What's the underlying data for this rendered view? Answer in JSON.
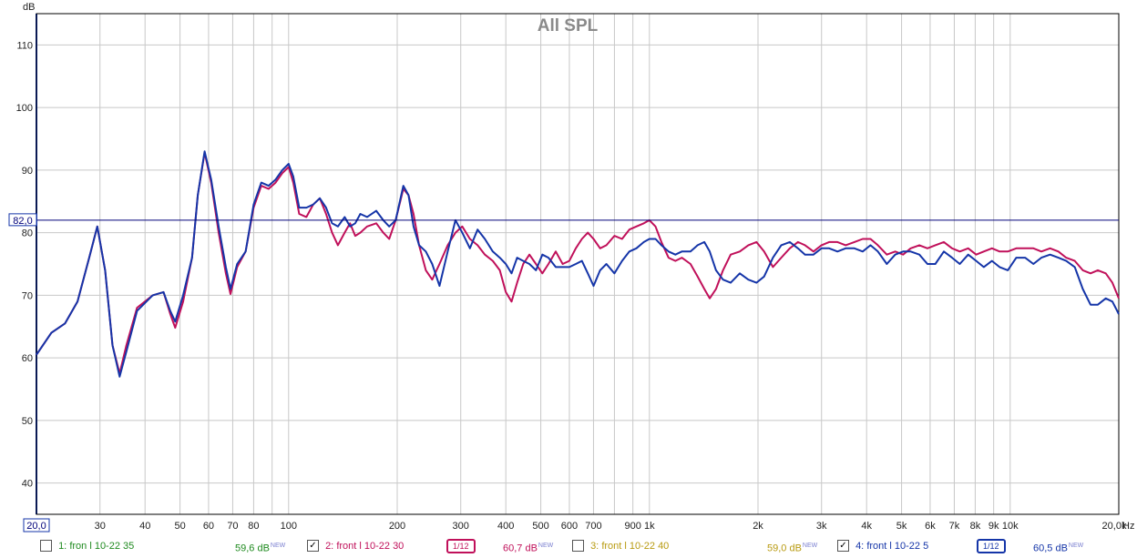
{
  "chart_data": {
    "type": "line",
    "title": "All SPL",
    "ylabel": "dB",
    "xunit": "Hz",
    "xscale": "log",
    "xlim": [
      20,
      20000
    ],
    "ylim": [
      35,
      115
    ],
    "grid": true,
    "ref_line": {
      "value": 82.0,
      "label": "82,0"
    },
    "x_start_label": "20,0",
    "y_ticks": [
      "40",
      "50",
      "60",
      "70",
      "80",
      "90",
      "100",
      "110"
    ],
    "x_ticks": [
      {
        "v": 30,
        "t": "30"
      },
      {
        "v": 40,
        "t": "40"
      },
      {
        "v": 50,
        "t": "50"
      },
      {
        "v": 60,
        "t": "60"
      },
      {
        "v": 70,
        "t": "70"
      },
      {
        "v": 80,
        "t": "80"
      },
      {
        "v": 100,
        "t": "100"
      },
      {
        "v": 200,
        "t": "200"
      },
      {
        "v": 300,
        "t": "300"
      },
      {
        "v": 400,
        "t": "400"
      },
      {
        "v": 500,
        "t": "500"
      },
      {
        "v": 600,
        "t": "600"
      },
      {
        "v": 700,
        "t": "700"
      },
      {
        "v": 900,
        "t": "900"
      },
      {
        "v": 1000,
        "t": "1k"
      },
      {
        "v": 2000,
        "t": "2k"
      },
      {
        "v": 3000,
        "t": "3k"
      },
      {
        "v": 4000,
        "t": "4k"
      },
      {
        "v": 5000,
        "t": "5k"
      },
      {
        "v": 6000,
        "t": "6k"
      },
      {
        "v": 7000,
        "t": "7k"
      },
      {
        "v": 8000,
        "t": "8k"
      },
      {
        "v": 9000,
        "t": "9k"
      },
      {
        "v": 10000,
        "t": "10k"
      },
      {
        "v": 20000,
        "t": "20,0k"
      }
    ],
    "series": [
      {
        "name": "2: front l 10-22 30",
        "color": "#c0105a",
        "points": [
          [
            20,
            60.5
          ],
          [
            22,
            64
          ],
          [
            24,
            65.5
          ],
          [
            26,
            69
          ],
          [
            28,
            76
          ],
          [
            29.5,
            81
          ],
          [
            31,
            74
          ],
          [
            32.5,
            62
          ],
          [
            34,
            57.5
          ],
          [
            35.5,
            62
          ],
          [
            38,
            68
          ],
          [
            42,
            70
          ],
          [
            45,
            70.5
          ],
          [
            47,
            67
          ],
          [
            48.5,
            64.8
          ],
          [
            51,
            69
          ],
          [
            54,
            76
          ],
          [
            56,
            86
          ],
          [
            58.5,
            92.8
          ],
          [
            61,
            88
          ],
          [
            64,
            80
          ],
          [
            67,
            73.5
          ],
          [
            69,
            70.2
          ],
          [
            72,
            74.5
          ],
          [
            76,
            77
          ],
          [
            80,
            84
          ],
          [
            84,
            87.5
          ],
          [
            88,
            87
          ],
          [
            92,
            88
          ],
          [
            96,
            89.5
          ],
          [
            100,
            90.5
          ],
          [
            103,
            88
          ],
          [
            107,
            83
          ],
          [
            112,
            82.5
          ],
          [
            117,
            84.5
          ],
          [
            122,
            85.5
          ],
          [
            127,
            83
          ],
          [
            132,
            80
          ],
          [
            137,
            78
          ],
          [
            143,
            80
          ],
          [
            148,
            81.5
          ],
          [
            153,
            79.5
          ],
          [
            158,
            80
          ],
          [
            165,
            81
          ],
          [
            175,
            81.5
          ],
          [
            183,
            80
          ],
          [
            190,
            79
          ],
          [
            198,
            82
          ],
          [
            208,
            87
          ],
          [
            215,
            86
          ],
          [
            222,
            83
          ],
          [
            230,
            78
          ],
          [
            240,
            74
          ],
          [
            250,
            72.5
          ],
          [
            262,
            75
          ],
          [
            276,
            78
          ],
          [
            290,
            80
          ],
          [
            303,
            81
          ],
          [
            318,
            79
          ],
          [
            334,
            78
          ],
          [
            350,
            76.5
          ],
          [
            368,
            75.5
          ],
          [
            385,
            74
          ],
          [
            400,
            70.5
          ],
          [
            415,
            69
          ],
          [
            430,
            72
          ],
          [
            447,
            75
          ],
          [
            465,
            76.5
          ],
          [
            485,
            75
          ],
          [
            505,
            73.5
          ],
          [
            525,
            75
          ],
          [
            550,
            77
          ],
          [
            575,
            75
          ],
          [
            600,
            75.5
          ],
          [
            625,
            77.5
          ],
          [
            650,
            79
          ],
          [
            675,
            80
          ],
          [
            700,
            79
          ],
          [
            730,
            77.5
          ],
          [
            760,
            78
          ],
          [
            800,
            79.5
          ],
          [
            840,
            79
          ],
          [
            880,
            80.5
          ],
          [
            920,
            81
          ],
          [
            965,
            81.5
          ],
          [
            1000,
            82
          ],
          [
            1040,
            81
          ],
          [
            1080,
            78.5
          ],
          [
            1130,
            76
          ],
          [
            1180,
            75.5
          ],
          [
            1230,
            76
          ],
          [
            1300,
            75
          ],
          [
            1360,
            73
          ],
          [
            1420,
            71
          ],
          [
            1470,
            69.5
          ],
          [
            1530,
            71
          ],
          [
            1600,
            74
          ],
          [
            1680,
            76.5
          ],
          [
            1780,
            77
          ],
          [
            1880,
            78
          ],
          [
            1980,
            78.5
          ],
          [
            2080,
            77
          ],
          [
            2200,
            74.5
          ],
          [
            2320,
            76
          ],
          [
            2450,
            77.5
          ],
          [
            2580,
            78.5
          ],
          [
            2700,
            78
          ],
          [
            2850,
            77
          ],
          [
            3000,
            78
          ],
          [
            3150,
            78.5
          ],
          [
            3320,
            78.5
          ],
          [
            3500,
            78
          ],
          [
            3700,
            78.5
          ],
          [
            3900,
            79
          ],
          [
            4100,
            79
          ],
          [
            4300,
            78
          ],
          [
            4550,
            76.5
          ],
          [
            4800,
            77
          ],
          [
            5050,
            76.5
          ],
          [
            5300,
            77.5
          ],
          [
            5600,
            78
          ],
          [
            5900,
            77.5
          ],
          [
            6200,
            78
          ],
          [
            6550,
            78.5
          ],
          [
            6900,
            77.5
          ],
          [
            7250,
            77
          ],
          [
            7650,
            77.5
          ],
          [
            8050,
            76.5
          ],
          [
            8450,
            77
          ],
          [
            8900,
            77.5
          ],
          [
            9350,
            77
          ],
          [
            9850,
            77
          ],
          [
            10400,
            77.5
          ],
          [
            11000,
            77.5
          ],
          [
            11600,
            77.5
          ],
          [
            12200,
            77
          ],
          [
            12900,
            77.5
          ],
          [
            13600,
            77
          ],
          [
            14300,
            76
          ],
          [
            15100,
            75.5
          ],
          [
            15900,
            74
          ],
          [
            16700,
            73.5
          ],
          [
            17500,
            74
          ],
          [
            18400,
            73.5
          ],
          [
            19200,
            72
          ],
          [
            20000,
            69.5
          ]
        ]
      },
      {
        "name": "4: front l 10-22 5",
        "color": "#1535a8",
        "points": [
          [
            20,
            60.5
          ],
          [
            22,
            64
          ],
          [
            24,
            65.5
          ],
          [
            26,
            69
          ],
          [
            28,
            76
          ],
          [
            29.5,
            81
          ],
          [
            31,
            74
          ],
          [
            32.5,
            62
          ],
          [
            34,
            57
          ],
          [
            35.5,
            61
          ],
          [
            38,
            67.5
          ],
          [
            42,
            70
          ],
          [
            45,
            70.5
          ],
          [
            47,
            67.5
          ],
          [
            48.5,
            65.8
          ],
          [
            51,
            70
          ],
          [
            54,
            76
          ],
          [
            56,
            86
          ],
          [
            58.5,
            93
          ],
          [
            61,
            88.5
          ],
          [
            64,
            81
          ],
          [
            67,
            74.5
          ],
          [
            69,
            71
          ],
          [
            72,
            75
          ],
          [
            76,
            77
          ],
          [
            80,
            84.5
          ],
          [
            84,
            88
          ],
          [
            88,
            87.5
          ],
          [
            92,
            88.5
          ],
          [
            96,
            90
          ],
          [
            100,
            91
          ],
          [
            103,
            89
          ],
          [
            107,
            84
          ],
          [
            112,
            84
          ],
          [
            117,
            84.5
          ],
          [
            122,
            85.5
          ],
          [
            127,
            84
          ],
          [
            132,
            81.5
          ],
          [
            137,
            81
          ],
          [
            143,
            82.5
          ],
          [
            148,
            81
          ],
          [
            153,
            81.5
          ],
          [
            158,
            83
          ],
          [
            165,
            82.5
          ],
          [
            175,
            83.5
          ],
          [
            183,
            82
          ],
          [
            190,
            81
          ],
          [
            198,
            82
          ],
          [
            208,
            87.5
          ],
          [
            215,
            86
          ],
          [
            222,
            81
          ],
          [
            230,
            78
          ],
          [
            240,
            77
          ],
          [
            250,
            75
          ],
          [
            262,
            71.5
          ],
          [
            276,
            77
          ],
          [
            290,
            82
          ],
          [
            303,
            80
          ],
          [
            318,
            77.5
          ],
          [
            334,
            80.5
          ],
          [
            350,
            79
          ],
          [
            368,
            77
          ],
          [
            385,
            76
          ],
          [
            400,
            75
          ],
          [
            415,
            73.5
          ],
          [
            430,
            76
          ],
          [
            447,
            75.5
          ],
          [
            465,
            75
          ],
          [
            485,
            74
          ],
          [
            505,
            76.5
          ],
          [
            525,
            76
          ],
          [
            550,
            74.5
          ],
          [
            575,
            74.5
          ],
          [
            600,
            74.5
          ],
          [
            625,
            75
          ],
          [
            650,
            75.5
          ],
          [
            675,
            73.5
          ],
          [
            700,
            71.5
          ],
          [
            730,
            74
          ],
          [
            760,
            75
          ],
          [
            800,
            73.5
          ],
          [
            840,
            75.5
          ],
          [
            880,
            77
          ],
          [
            920,
            77.5
          ],
          [
            965,
            78.5
          ],
          [
            1000,
            79
          ],
          [
            1040,
            79
          ],
          [
            1080,
            78
          ],
          [
            1130,
            77
          ],
          [
            1180,
            76.5
          ],
          [
            1230,
            77
          ],
          [
            1300,
            77
          ],
          [
            1360,
            78
          ],
          [
            1420,
            78.5
          ],
          [
            1470,
            77
          ],
          [
            1530,
            74
          ],
          [
            1600,
            72.5
          ],
          [
            1680,
            72
          ],
          [
            1780,
            73.5
          ],
          [
            1880,
            72.5
          ],
          [
            1980,
            72
          ],
          [
            2080,
            73
          ],
          [
            2200,
            76
          ],
          [
            2320,
            78
          ],
          [
            2450,
            78.5
          ],
          [
            2580,
            77.5
          ],
          [
            2700,
            76.5
          ],
          [
            2850,
            76.5
          ],
          [
            3000,
            77.5
          ],
          [
            3150,
            77.5
          ],
          [
            3320,
            77
          ],
          [
            3500,
            77.5
          ],
          [
            3700,
            77.5
          ],
          [
            3900,
            77
          ],
          [
            4100,
            78
          ],
          [
            4300,
            77
          ],
          [
            4550,
            75
          ],
          [
            4800,
            76.5
          ],
          [
            5050,
            77
          ],
          [
            5300,
            77
          ],
          [
            5600,
            76.5
          ],
          [
            5900,
            75
          ],
          [
            6200,
            75
          ],
          [
            6550,
            77
          ],
          [
            6900,
            76
          ],
          [
            7250,
            75
          ],
          [
            7650,
            76.5
          ],
          [
            8050,
            75.5
          ],
          [
            8450,
            74.5
          ],
          [
            8900,
            75.5
          ],
          [
            9350,
            74.5
          ],
          [
            9850,
            74
          ],
          [
            10400,
            76
          ],
          [
            11000,
            76
          ],
          [
            11600,
            75
          ],
          [
            12200,
            76
          ],
          [
            12900,
            76.5
          ],
          [
            13600,
            76
          ],
          [
            14300,
            75.5
          ],
          [
            15100,
            74.5
          ],
          [
            15900,
            71
          ],
          [
            16700,
            68.5
          ],
          [
            17500,
            68.5
          ],
          [
            18400,
            69.5
          ],
          [
            19200,
            69
          ],
          [
            20000,
            67
          ]
        ]
      }
    ]
  },
  "legend": [
    {
      "num": "1:",
      "name": "fron l 10-22 35",
      "level": "59,6 dB",
      "tag": "NEW",
      "checked": "",
      "color": "#1f8a1f"
    },
    {
      "num": "2:",
      "name": "front l 10-22 30",
      "level": "60,7 dB",
      "tag": "NEW",
      "checked": "✓",
      "color": "#c0105a",
      "smoothing": "1/12"
    },
    {
      "num": "3:",
      "name": "front l 10-22 40",
      "level": "59,0 dB",
      "tag": "NEW",
      "checked": "",
      "color": "#b89a10"
    },
    {
      "num": "4:",
      "name": "front l 10-22 5",
      "level": "60,5 dB",
      "tag": "NEW",
      "checked": "✓",
      "color": "#1535a8",
      "smoothing": "1/12"
    }
  ]
}
